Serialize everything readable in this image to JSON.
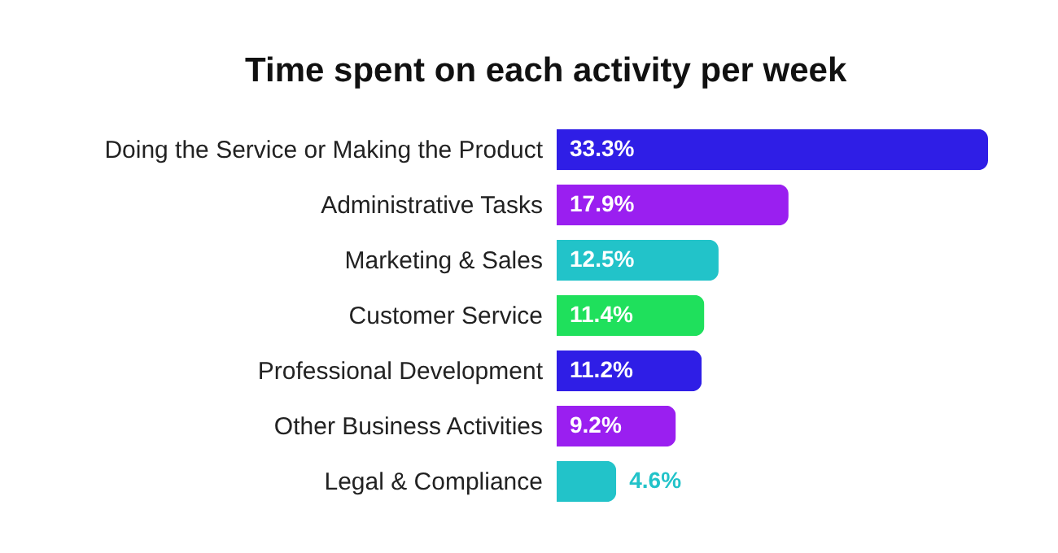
{
  "chart_data": {
    "type": "bar",
    "orientation": "horizontal",
    "title": "Time spent on each activity per week",
    "categories": [
      "Doing the Service or Making the Product",
      "Administrative Tasks",
      "Marketing & Sales",
      "Customer Service",
      "Professional Development",
      "Other Business Activities",
      "Legal & Compliance"
    ],
    "values": [
      33.3,
      17.9,
      12.5,
      11.4,
      11.2,
      9.2,
      4.6
    ],
    "colors": [
      "#2f1ee6",
      "#9a1ff0",
      "#22c3c9",
      "#1fe05c",
      "#2f1ee6",
      "#9a1ff0",
      "#22c3c9"
    ],
    "value_labels": [
      "33.3%",
      "17.9%",
      "12.5%",
      "11.4%",
      "11.2%",
      "9.2%",
      "4.6%"
    ]
  }
}
